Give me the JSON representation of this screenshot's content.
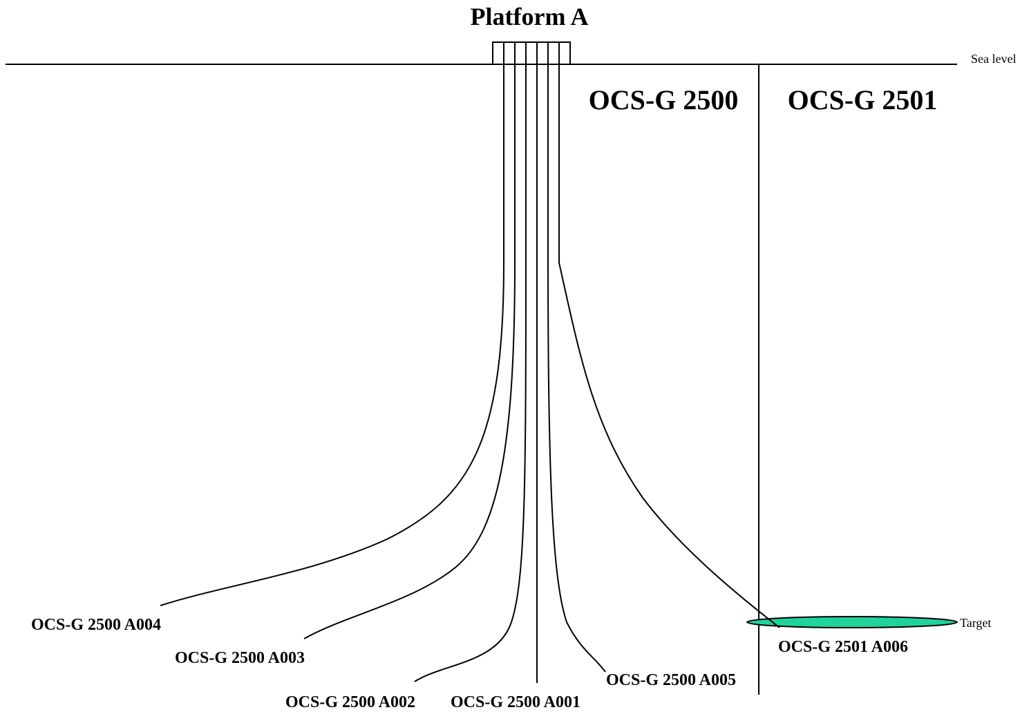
{
  "title": "Platform A",
  "sea_level_label": "Sea level",
  "leases": {
    "left": "OCS-G 2500",
    "right": "OCS-G 2501"
  },
  "target_label": "Target",
  "wells": {
    "a001": "OCS-G 2500 A001",
    "a002": "OCS-G 2500 A002",
    "a003": "OCS-G 2500 A003",
    "a004": "OCS-G 2500 A004",
    "a005": "OCS-G 2500 A005",
    "a006": "OCS-G 2501 A006"
  },
  "colors": {
    "target_fill": "#1fd39a",
    "line": "#000000"
  }
}
